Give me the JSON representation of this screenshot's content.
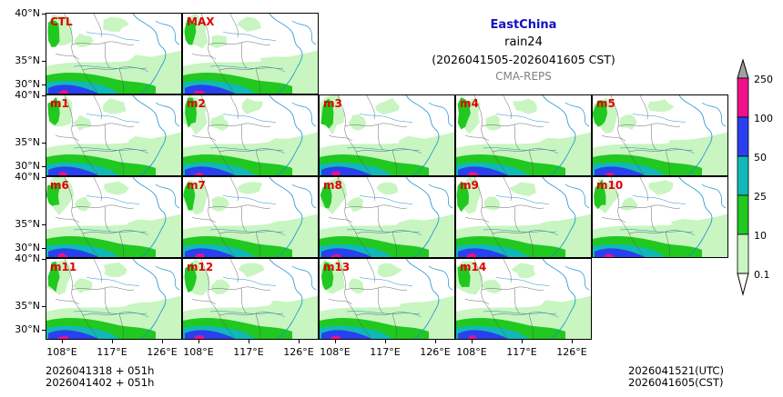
{
  "title": {
    "region": "EastChina",
    "variable": "rain24",
    "period": "(2026041505-2026041605 CST)",
    "model": "CMA-REPS"
  },
  "panels": [
    "CTL",
    "MAX",
    "m1",
    "m2",
    "m3",
    "m4",
    "m5",
    "m6",
    "m7",
    "m8",
    "m9",
    "m10",
    "m11",
    "m12",
    "m13",
    "m14"
  ],
  "axes": {
    "lat_labels": [
      "40°N",
      "35°N",
      "30°N"
    ],
    "lon_labels": [
      "108°E",
      "117°E",
      "126°E"
    ]
  },
  "footer": {
    "init_utc": "2026041318  +  051h",
    "init_cst": "2026041402  +  051h",
    "valid_utc": "2026041521(UTC)",
    "valid_cst": "2026041605(CST)"
  },
  "legend": {
    "levels": [
      "0.1",
      "10",
      "25",
      "50",
      "100",
      "250"
    ],
    "colors": [
      "#c8f5c0",
      "#20c820",
      "#10b8b8",
      "#2a40f0",
      "#f0108c",
      "#a0a0a0"
    ]
  }
}
